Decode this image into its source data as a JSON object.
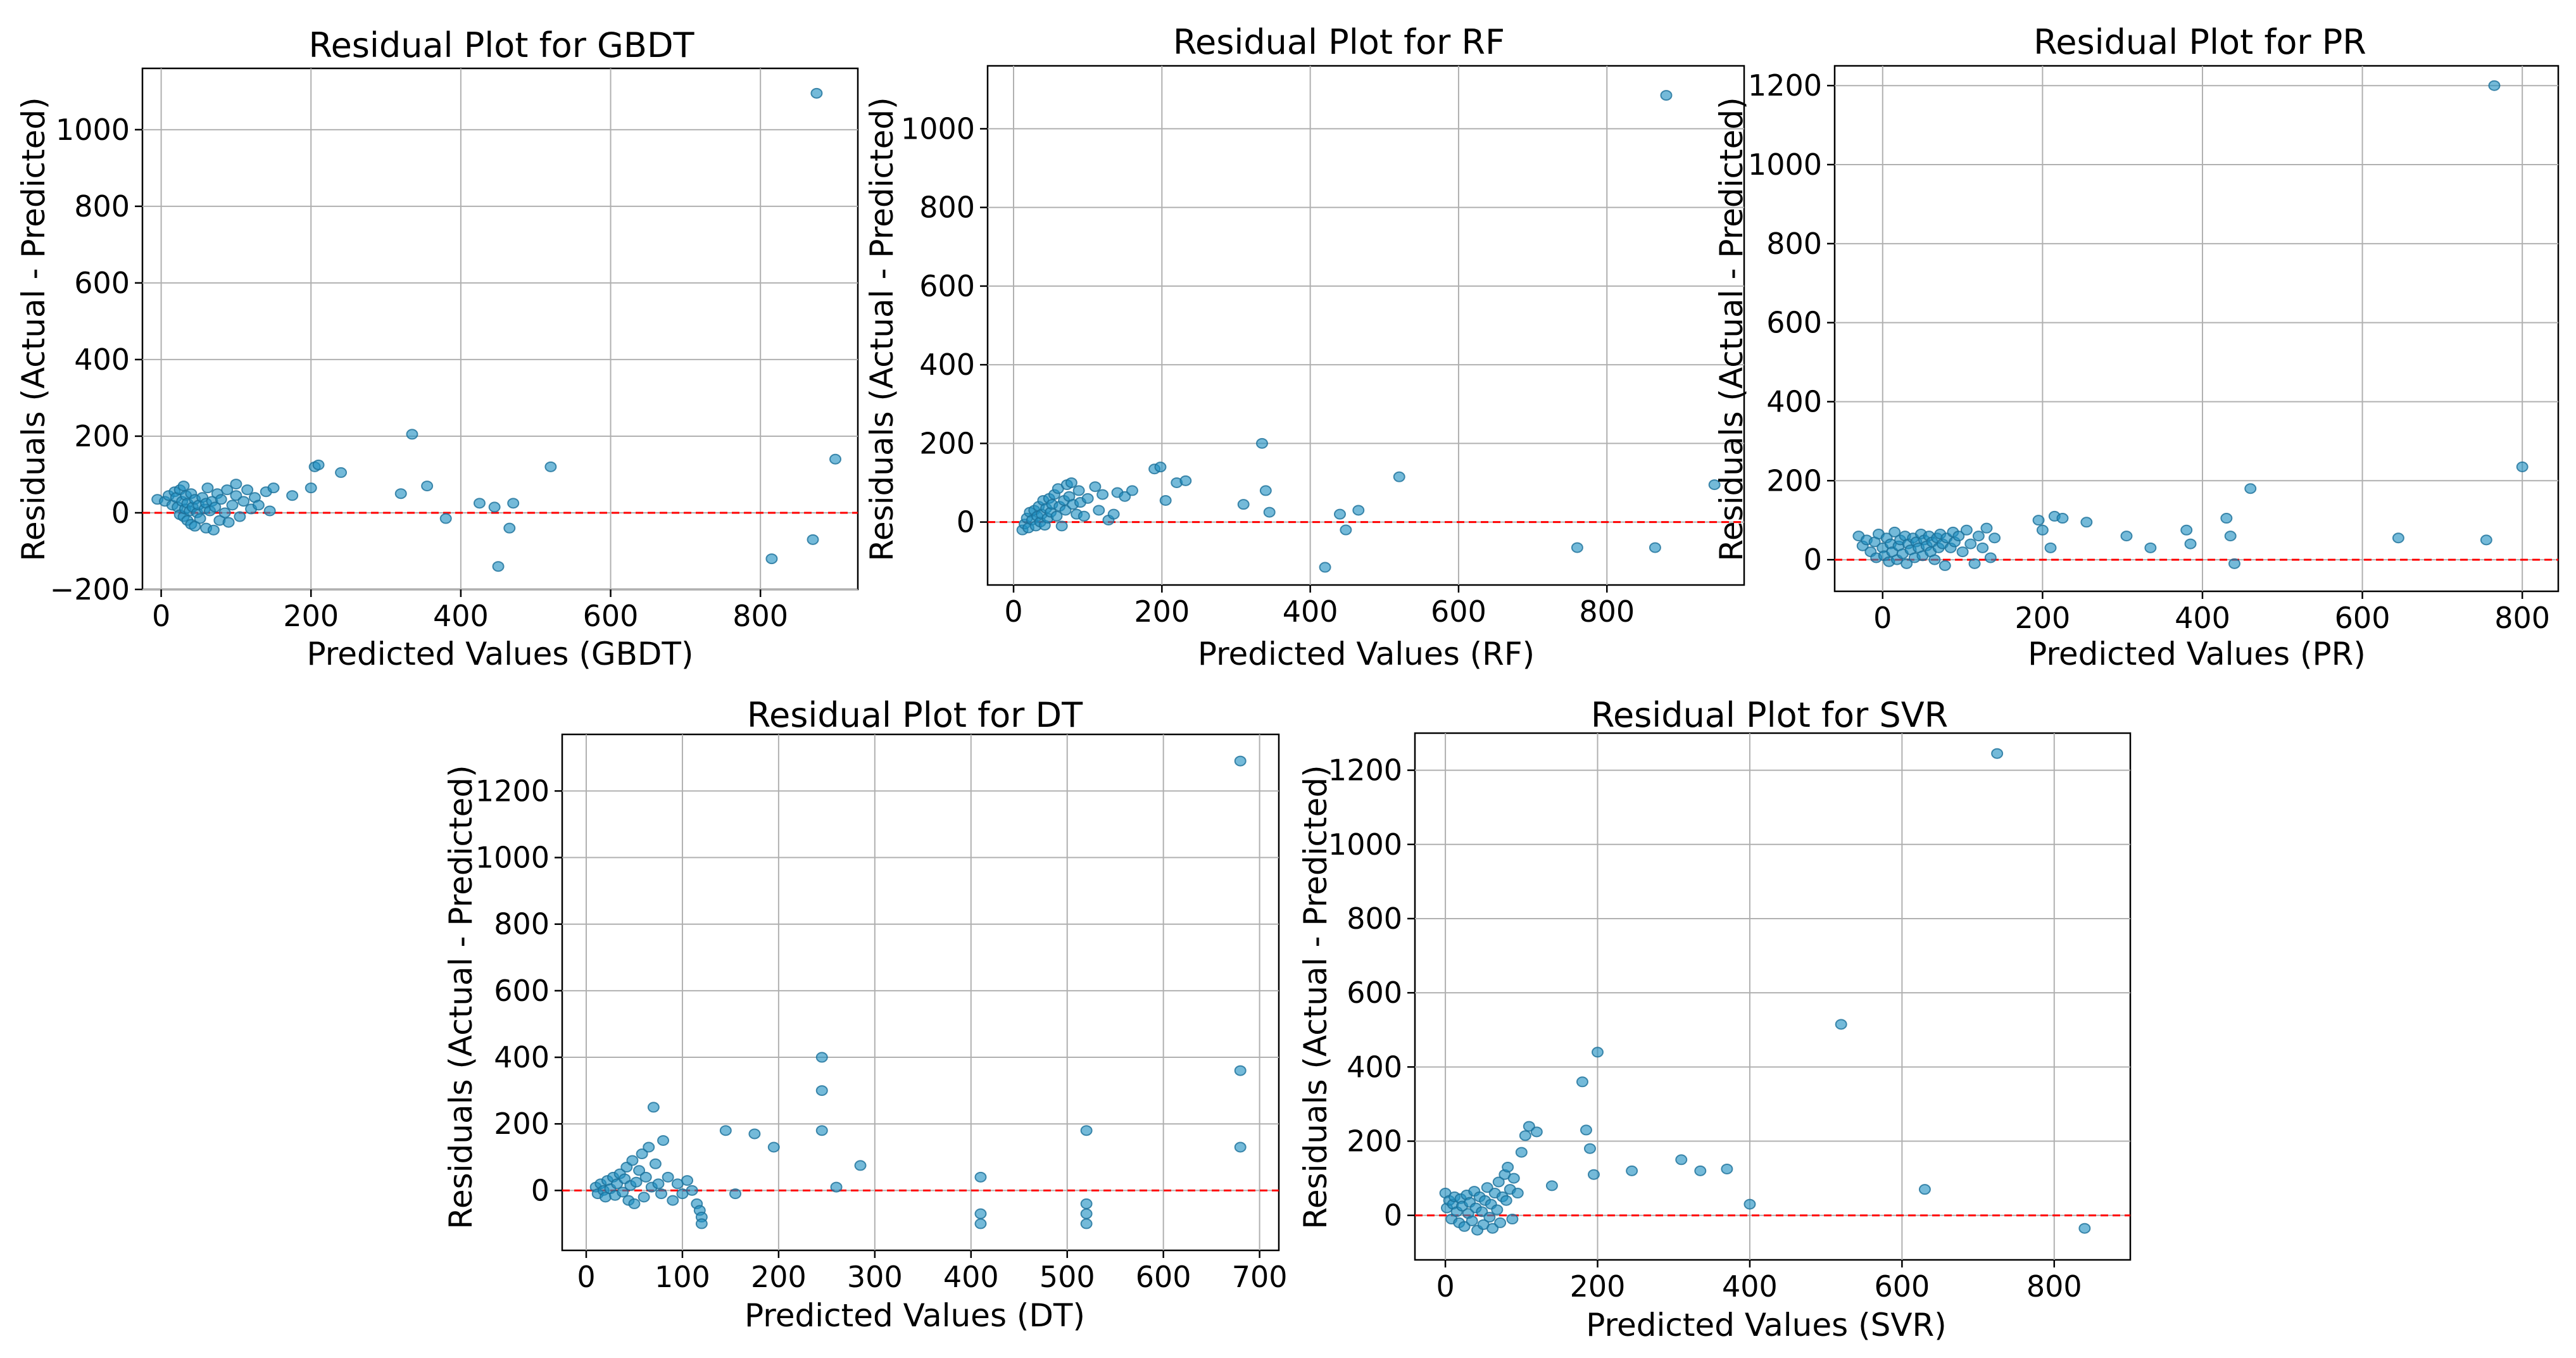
{
  "chart_data": [
    {
      "type": "scatter",
      "title": "Residual Plot for GBDT",
      "xlabel": "Predicted Values (GBDT)",
      "ylabel": "Residuals (Actual - Predicted)",
      "xlim": [
        -25,
        930
      ],
      "ylim": [
        -200,
        1160
      ],
      "xticks": [
        0,
        200,
        400,
        600,
        800
      ],
      "yticks": [
        -200,
        0,
        200,
        400,
        600,
        800,
        1000
      ],
      "grid": true,
      "reference_line": {
        "y": 0,
        "color": "#ff0000",
        "style": "dashed"
      },
      "point_color": "#1f8fc2",
      "points": [
        [
          -5,
          35
        ],
        [
          5,
          30
        ],
        [
          10,
          45
        ],
        [
          15,
          20
        ],
        [
          18,
          55
        ],
        [
          20,
          40
        ],
        [
          22,
          15
        ],
        [
          25,
          60
        ],
        [
          25,
          -5
        ],
        [
          28,
          30
        ],
        [
          30,
          70
        ],
        [
          30,
          -10
        ],
        [
          32,
          10
        ],
        [
          33,
          45
        ],
        [
          35,
          -20
        ],
        [
          35,
          25
        ],
        [
          38,
          5
        ],
        [
          40,
          -30
        ],
        [
          40,
          50
        ],
        [
          42,
          15
        ],
        [
          45,
          -35
        ],
        [
          45,
          35
        ],
        [
          48,
          0
        ],
        [
          50,
          20
        ],
        [
          52,
          -15
        ],
        [
          55,
          40
        ],
        [
          58,
          10
        ],
        [
          60,
          -40
        ],
        [
          60,
          25
        ],
        [
          62,
          65
        ],
        [
          65,
          5
        ],
        [
          68,
          30
        ],
        [
          70,
          -45
        ],
        [
          72,
          15
        ],
        [
          75,
          50
        ],
        [
          78,
          -20
        ],
        [
          80,
          35
        ],
        [
          85,
          0
        ],
        [
          88,
          60
        ],
        [
          90,
          -25
        ],
        [
          95,
          20
        ],
        [
          100,
          45
        ],
        [
          100,
          75
        ],
        [
          105,
          -10
        ],
        [
          110,
          30
        ],
        [
          115,
          60
        ],
        [
          120,
          10
        ],
        [
          125,
          40
        ],
        [
          130,
          20
        ],
        [
          140,
          55
        ],
        [
          145,
          5
        ],
        [
          150,
          65
        ],
        [
          175,
          45
        ],
        [
          200,
          65
        ],
        [
          205,
          120
        ],
        [
          210,
          125
        ],
        [
          240,
          105
        ],
        [
          320,
          50
        ],
        [
          335,
          205
        ],
        [
          355,
          70
        ],
        [
          380,
          -15
        ],
        [
          425,
          25
        ],
        [
          445,
          15
        ],
        [
          450,
          -140
        ],
        [
          465,
          -40
        ],
        [
          470,
          25
        ],
        [
          520,
          120
        ],
        [
          815,
          -120
        ],
        [
          870,
          -70
        ],
        [
          875,
          1095
        ],
        [
          900,
          140
        ]
      ]
    },
    {
      "type": "scatter",
      "title": "Residual Plot for RF",
      "xlabel": "Predicted Values (RF)",
      "ylabel": "Residuals (Actual - Predicted)",
      "xlim": [
        -35,
        985
      ],
      "ylim": [
        -160,
        1160
      ],
      "xticks": [
        0,
        200,
        400,
        600,
        800
      ],
      "yticks": [
        0,
        200,
        400,
        600,
        800,
        1000
      ],
      "grid": true,
      "reference_line": {
        "y": 0,
        "color": "#ff0000",
        "style": "dashed"
      },
      "point_color": "#1f8fc2",
      "points": [
        [
          12,
          -20
        ],
        [
          15,
          -5
        ],
        [
          18,
          10
        ],
        [
          20,
          -15
        ],
        [
          22,
          25
        ],
        [
          25,
          5
        ],
        [
          28,
          30
        ],
        [
          30,
          -10
        ],
        [
          32,
          15
        ],
        [
          34,
          40
        ],
        [
          36,
          0
        ],
        [
          38,
          20
        ],
        [
          40,
          55
        ],
        [
          42,
          -8
        ],
        [
          44,
          35
        ],
        [
          46,
          10
        ],
        [
          48,
          60
        ],
        [
          50,
          25
        ],
        [
          52,
          45
        ],
        [
          55,
          70
        ],
        [
          58,
          15
        ],
        [
          60,
          85
        ],
        [
          62,
          40
        ],
        [
          65,
          -10
        ],
        [
          68,
          55
        ],
        [
          70,
          30
        ],
        [
          72,
          95
        ],
        [
          75,
          65
        ],
        [
          78,
          100
        ],
        [
          80,
          45
        ],
        [
          85,
          20
        ],
        [
          88,
          80
        ],
        [
          90,
          50
        ],
        [
          95,
          15
        ],
        [
          100,
          60
        ],
        [
          110,
          90
        ],
        [
          115,
          30
        ],
        [
          120,
          70
        ],
        [
          128,
          5
        ],
        [
          135,
          20
        ],
        [
          140,
          75
        ],
        [
          150,
          65
        ],
        [
          160,
          80
        ],
        [
          190,
          135
        ],
        [
          198,
          140
        ],
        [
          205,
          55
        ],
        [
          220,
          100
        ],
        [
          232,
          105
        ],
        [
          310,
          45
        ],
        [
          335,
          200
        ],
        [
          340,
          80
        ],
        [
          345,
          25
        ],
        [
          420,
          -115
        ],
        [
          440,
          20
        ],
        [
          448,
          -20
        ],
        [
          465,
          30
        ],
        [
          520,
          115
        ],
        [
          760,
          -65
        ],
        [
          865,
          -65
        ],
        [
          880,
          1085
        ],
        [
          945,
          95
        ]
      ]
    },
    {
      "type": "scatter",
      "title": "Residual Plot for PR",
      "xlabel": "Predicted Values (PR)",
      "ylabel": "Residuals (Actual - Predicted)",
      "xlim": [
        -60,
        845
      ],
      "ylim": [
        -80,
        1250
      ],
      "xticks": [
        0,
        200,
        400,
        600,
        800
      ],
      "yticks": [
        0,
        200,
        400,
        600,
        800,
        1000,
        1200
      ],
      "grid": true,
      "reference_line": {
        "y": 0,
        "color": "#ff0000",
        "style": "dashed"
      },
      "point_color": "#1f8fc2",
      "points": [
        [
          -30,
          60
        ],
        [
          -25,
          35
        ],
        [
          -20,
          50
        ],
        [
          -15,
          20
        ],
        [
          -10,
          45
        ],
        [
          -8,
          5
        ],
        [
          -5,
          65
        ],
        [
          0,
          30
        ],
        [
          2,
          10
        ],
        [
          5,
          55
        ],
        [
          8,
          -5
        ],
        [
          10,
          40
        ],
        [
          12,
          20
        ],
        [
          15,
          70
        ],
        [
          18,
          0
        ],
        [
          20,
          35
        ],
        [
          22,
          50
        ],
        [
          25,
          15
        ],
        [
          28,
          60
        ],
        [
          30,
          -10
        ],
        [
          32,
          40
        ],
        [
          35,
          25
        ],
        [
          38,
          55
        ],
        [
          40,
          5
        ],
        [
          42,
          45
        ],
        [
          45,
          30
        ],
        [
          48,
          65
        ],
        [
          50,
          10
        ],
        [
          52,
          50
        ],
        [
          55,
          35
        ],
        [
          58,
          60
        ],
        [
          60,
          20
        ],
        [
          62,
          45
        ],
        [
          65,
          0
        ],
        [
          68,
          55
        ],
        [
          70,
          30
        ],
        [
          72,
          65
        ],
        [
          75,
          40
        ],
        [
          78,
          -15
        ],
        [
          80,
          55
        ],
        [
          85,
          30
        ],
        [
          88,
          70
        ],
        [
          90,
          45
        ],
        [
          95,
          60
        ],
        [
          100,
          20
        ],
        [
          105,
          75
        ],
        [
          110,
          40
        ],
        [
          115,
          -10
        ],
        [
          120,
          60
        ],
        [
          125,
          30
        ],
        [
          130,
          80
        ],
        [
          135,
          5
        ],
        [
          140,
          55
        ],
        [
          195,
          100
        ],
        [
          200,
          75
        ],
        [
          210,
          30
        ],
        [
          215,
          110
        ],
        [
          225,
          105
        ],
        [
          255,
          95
        ],
        [
          305,
          60
        ],
        [
          335,
          30
        ],
        [
          380,
          75
        ],
        [
          385,
          40
        ],
        [
          430,
          105
        ],
        [
          435,
          60
        ],
        [
          440,
          -10
        ],
        [
          460,
          180
        ],
        [
          645,
          55
        ],
        [
          755,
          50
        ],
        [
          765,
          1200
        ],
        [
          800,
          235
        ]
      ]
    },
    {
      "type": "scatter",
      "title": "Residual Plot for DT",
      "xlabel": "Predicted Values (DT)",
      "ylabel": "Residuals (Actual - Predicted)",
      "xlim": [
        -25,
        720
      ],
      "ylim": [
        -180,
        1370
      ],
      "xticks": [
        0,
        100,
        200,
        300,
        400,
        500,
        600,
        700
      ],
      "yticks": [
        0,
        200,
        400,
        600,
        800,
        1000,
        1200
      ],
      "grid": true,
      "reference_line": {
        "y": 0,
        "color": "#ff0000",
        "style": "dashed"
      },
      "point_color": "#1f8fc2",
      "points": [
        [
          10,
          10
        ],
        [
          12,
          -10
        ],
        [
          15,
          20
        ],
        [
          18,
          0
        ],
        [
          20,
          -20
        ],
        [
          22,
          30
        ],
        [
          25,
          5
        ],
        [
          28,
          40
        ],
        [
          30,
          -15
        ],
        [
          32,
          20
        ],
        [
          35,
          50
        ],
        [
          38,
          -5
        ],
        [
          40,
          35
        ],
        [
          42,
          70
        ],
        [
          44,
          -30
        ],
        [
          46,
          15
        ],
        [
          48,
          90
        ],
        [
          50,
          -40
        ],
        [
          52,
          25
        ],
        [
          55,
          60
        ],
        [
          58,
          110
        ],
        [
          60,
          -20
        ],
        [
          62,
          40
        ],
        [
          65,
          130
        ],
        [
          68,
          10
        ],
        [
          70,
          250
        ],
        [
          72,
          80
        ],
        [
          75,
          20
        ],
        [
          78,
          -10
        ],
        [
          80,
          150
        ],
        [
          85,
          40
        ],
        [
          90,
          -30
        ],
        [
          95,
          20
        ],
        [
          100,
          -10
        ],
        [
          105,
          30
        ],
        [
          110,
          0
        ],
        [
          115,
          -40
        ],
        [
          118,
          -60
        ],
        [
          120,
          -80
        ],
        [
          120,
          -100
        ],
        [
          145,
          180
        ],
        [
          155,
          -10
        ],
        [
          175,
          170
        ],
        [
          195,
          130
        ],
        [
          245,
          400
        ],
        [
          245,
          300
        ],
        [
          245,
          180
        ],
        [
          260,
          10
        ],
        [
          285,
          75
        ],
        [
          410,
          40
        ],
        [
          410,
          -70
        ],
        [
          410,
          -100
        ],
        [
          520,
          180
        ],
        [
          520,
          -40
        ],
        [
          520,
          -70
        ],
        [
          520,
          -100
        ],
        [
          680,
          1290
        ],
        [
          680,
          360
        ],
        [
          680,
          130
        ]
      ]
    },
    {
      "type": "scatter",
      "title": "Residual Plot for SVR",
      "xlabel": "Predicted Values (SVR)",
      "ylabel": "Residuals (Actual - Predicted)",
      "xlim": [
        -40,
        900
      ],
      "ylim": [
        -120,
        1300
      ],
      "xticks": [
        0,
        200,
        400,
        600,
        800
      ],
      "yticks": [
        0,
        200,
        400,
        600,
        800,
        1000,
        1200
      ],
      "grid": true,
      "reference_line": {
        "y": 0,
        "color": "#ff0000",
        "style": "dashed"
      },
      "point_color": "#1f8fc2",
      "points": [
        [
          0,
          60
        ],
        [
          2,
          20
        ],
        [
          5,
          40
        ],
        [
          8,
          -10
        ],
        [
          10,
          30
        ],
        [
          12,
          50
        ],
        [
          15,
          10
        ],
        [
          18,
          -20
        ],
        [
          20,
          45
        ],
        [
          22,
          25
        ],
        [
          25,
          -30
        ],
        [
          28,
          55
        ],
        [
          30,
          5
        ],
        [
          32,
          35
        ],
        [
          35,
          -15
        ],
        [
          38,
          65
        ],
        [
          40,
          20
        ],
        [
          42,
          -40
        ],
        [
          45,
          50
        ],
        [
          48,
          10
        ],
        [
          50,
          -25
        ],
        [
          52,
          40
        ],
        [
          55,
          75
        ],
        [
          58,
          -5
        ],
        [
          60,
          30
        ],
        [
          62,
          -35
        ],
        [
          65,
          60
        ],
        [
          68,
          15
        ],
        [
          70,
          90
        ],
        [
          72,
          -20
        ],
        [
          75,
          50
        ],
        [
          78,
          110
        ],
        [
          80,
          40
        ],
        [
          82,
          130
        ],
        [
          85,
          70
        ],
        [
          88,
          -10
        ],
        [
          90,
          100
        ],
        [
          95,
          60
        ],
        [
          100,
          170
        ],
        [
          105,
          215
        ],
        [
          110,
          240
        ],
        [
          120,
          225
        ],
        [
          140,
          80
        ],
        [
          180,
          360
        ],
        [
          185,
          230
        ],
        [
          190,
          180
        ],
        [
          195,
          110
        ],
        [
          200,
          440
        ],
        [
          245,
          120
        ],
        [
          310,
          150
        ],
        [
          335,
          120
        ],
        [
          370,
          125
        ],
        [
          400,
          30
        ],
        [
          520,
          515
        ],
        [
          630,
          70
        ],
        [
          725,
          1245
        ],
        [
          840,
          -35
        ]
      ]
    }
  ]
}
